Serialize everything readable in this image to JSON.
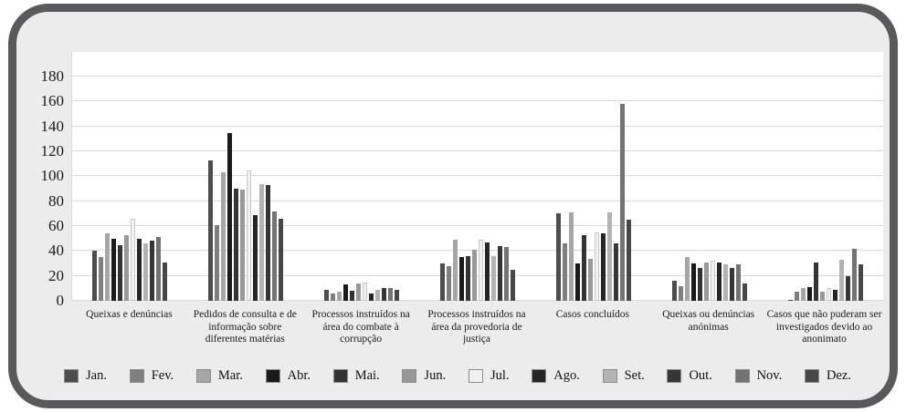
{
  "figure": {
    "frame_border_color": "#59595b",
    "frame_background": "#ececec",
    "plot_background": "#ffffff",
    "gridline_color": "#d9d9d9"
  },
  "chart_data": {
    "type": "bar",
    "title": "",
    "xlabel": "",
    "ylabel": "",
    "grid": true,
    "legend_position": "bottom",
    "y_axis": {
      "min": 0,
      "max": 180,
      "step": 20,
      "tick_labels": [
        "0",
        "20",
        "40",
        "60",
        "80",
        "100",
        "120",
        "140",
        "160",
        "180"
      ]
    },
    "ylim": [
      0,
      200
    ],
    "categories": [
      "Queixas e denúncias",
      "Pedidos de consulta e de informação sobre diferentes matérias",
      "Processos instruídos na área do combate à corrupção",
      "Processos instruídos na área da provedoria de justiça",
      "Casos concluídos",
      "Queixas ou denúncias anónimas",
      "Casos que não puderam ser investigados devido ao anonimato"
    ],
    "series": [
      {
        "name": "Jan.",
        "color": "#4d4d4d",
        "values": [
          40,
          113,
          9,
          30,
          70,
          16,
          1
        ]
      },
      {
        "name": "Fev.",
        "color": "#7f7f7f",
        "values": [
          35,
          61,
          6,
          28,
          46,
          12,
          7
        ]
      },
      {
        "name": "Mar.",
        "color": "#a6a6a6",
        "values": [
          54,
          103,
          7,
          49,
          71,
          35,
          10
        ]
      },
      {
        "name": "Abr.",
        "color": "#1a1a1a",
        "values": [
          50,
          135,
          13,
          35,
          30,
          30,
          11
        ]
      },
      {
        "name": "Mai.",
        "color": "#333333",
        "values": [
          45,
          90,
          8,
          36,
          53,
          26,
          31
        ]
      },
      {
        "name": "Jun.",
        "color": "#999999",
        "values": [
          53,
          89,
          14,
          41,
          34,
          31,
          7
        ]
      },
      {
        "name": "Jul.",
        "color": "#f0f0f0",
        "edge": "#c9c9c9",
        "values": [
          66,
          105,
          15,
          49,
          55,
          32,
          10
        ]
      },
      {
        "name": "Ago.",
        "color": "#262626",
        "values": [
          50,
          69,
          6,
          47,
          54,
          31,
          9
        ]
      },
      {
        "name": "Set.",
        "color": "#b3b3b3",
        "values": [
          46,
          94,
          9,
          36,
          71,
          29,
          33
        ]
      },
      {
        "name": "Out.",
        "color": "#363636",
        "values": [
          48,
          93,
          10,
          44,
          46,
          26,
          20
        ]
      },
      {
        "name": "Nov.",
        "color": "#737373",
        "values": [
          51,
          72,
          10,
          43,
          158,
          29,
          42
        ]
      },
      {
        "name": "Dez.",
        "color": "#474747",
        "values": [
          31,
          66,
          9,
          25,
          65,
          14,
          29
        ]
      }
    ]
  }
}
